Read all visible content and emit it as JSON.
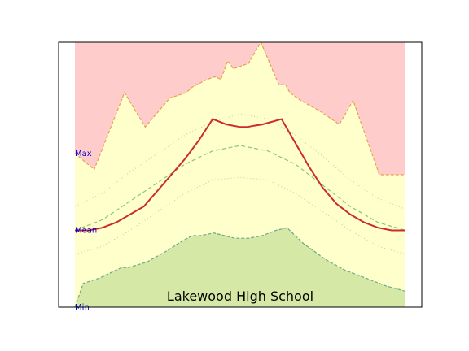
{
  "chart_data": {
    "type": "area",
    "title": "Lakewood High School",
    "xlabel": "",
    "ylabel": "",
    "xlim": [
      0,
      24
    ],
    "ylim": [
      0,
      100
    ],
    "grid": false,
    "labels": [
      "Max",
      "Mean",
      "Min"
    ],
    "label_values": [
      58,
      29,
      0
    ],
    "colors": {
      "max_area": "#ffcccc",
      "band_area": "#ffffcc",
      "min_area": "#d6e8a6",
      "max_line": "#e8a050",
      "min_line": "#6aaa88",
      "mean_line": "#8cc870",
      "band_line": "#c8d890",
      "current_line": "#cc2b2b",
      "label_text": "#0000cc",
      "plot_border": "#000000"
    },
    "series": [
      {
        "type": "area-top",
        "x": [
          0,
          1.4,
          3.6,
          5.1,
          6.9,
          8.1,
          8.5,
          9.6,
          10.2,
          10.6,
          11.1,
          11.5,
          12.6,
          13.5,
          14.8,
          15.3,
          15.6,
          16.4,
          17.8,
          19.2,
          20.2,
          22.1,
          22.6,
          24
        ],
        "values": [
          58,
          52,
          81,
          68,
          79,
          81,
          83,
          86,
          87,
          86,
          93,
          90,
          92,
          100,
          84,
          84,
          81,
          78,
          74,
          69,
          78,
          50,
          50,
          50
        ]
      },
      {
        "type": "area-bottom",
        "x": [
          0,
          0.6,
          1.8,
          3.4,
          3.9,
          5.2,
          6.6,
          7.8,
          8.5,
          9.1,
          10.1,
          11.6,
          12.6,
          13.6,
          14.6,
          15.4,
          16.6,
          18.2,
          19.6,
          21.1,
          22.6,
          24
        ],
        "values": [
          0,
          9,
          11,
          15,
          15,
          17,
          21,
          25,
          27,
          27,
          28,
          26,
          26,
          27,
          29,
          30,
          24,
          18,
          14,
          11,
          8,
          6
        ]
      },
      {
        "type": "dashed-mean",
        "x": [
          0,
          2,
          4,
          6,
          8,
          10,
          12,
          14,
          16,
          18,
          20,
          22,
          24
        ],
        "values": [
          29,
          33,
          40,
          47,
          54,
          59,
          61,
          59,
          54,
          46,
          38,
          32,
          29
        ]
      },
      {
        "type": "dotted-upper",
        "x": [
          0,
          2,
          4,
          6,
          8,
          10,
          12,
          14,
          16,
          18,
          20,
          22,
          24
        ],
        "values": [
          38,
          43,
          51,
          58,
          65,
          70,
          73,
          71,
          65,
          57,
          48,
          41,
          37
        ]
      },
      {
        "type": "dotted-lower",
        "x": [
          0,
          2,
          4,
          6,
          8,
          10,
          12,
          14,
          16,
          18,
          20,
          22,
          24
        ],
        "values": [
          20,
          23,
          29,
          36,
          43,
          48,
          49,
          48,
          43,
          36,
          29,
          23,
          20
        ]
      },
      {
        "type": "line",
        "x": [
          0,
          1,
          2,
          3,
          4,
          5,
          6,
          7,
          8,
          9,
          10,
          11,
          12,
          12.5,
          13,
          13.6,
          15,
          16,
          17,
          18,
          19,
          20,
          21,
          22,
          23,
          24
        ],
        "values": [
          29,
          29,
          30,
          32,
          35,
          38,
          44,
          50,
          56,
          63,
          71,
          69,
          68,
          68,
          68.5,
          69,
          71,
          62,
          53,
          45,
          39,
          35,
          32,
          30,
          29,
          29
        ]
      }
    ]
  }
}
